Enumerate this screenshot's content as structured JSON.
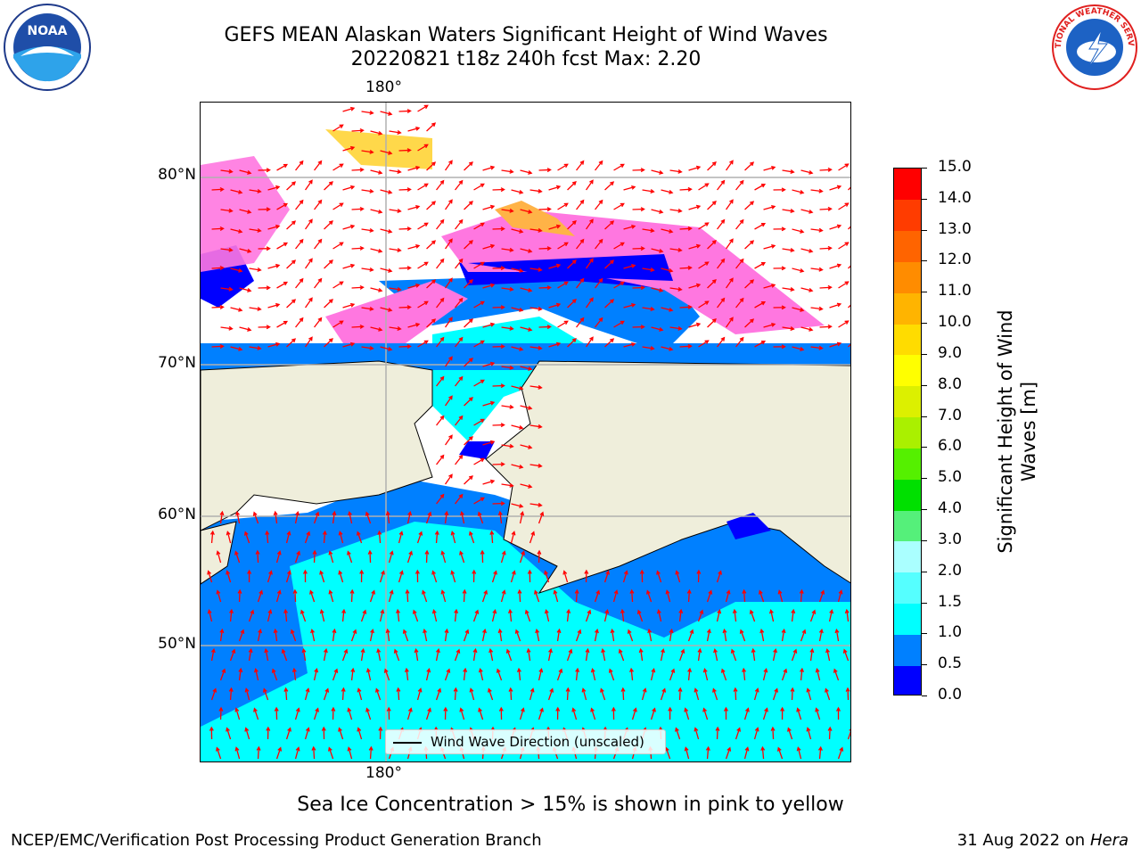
{
  "title": {
    "line1": "GEFS MEAN Alaskan Waters Significant Height of Wind Waves",
    "line2": "20220821 t18z 240h fcst   Max: 2.20"
  },
  "logos": {
    "left": {
      "name": "noaa-logo",
      "text": "NOAA"
    },
    "right": {
      "name": "nws-logo",
      "text": "NATIONAL WEATHER SERVICE"
    }
  },
  "map": {
    "lat_labels": [
      "80°N",
      "70°N",
      "60°N",
      "50°N"
    ],
    "lon_label_top": "180°",
    "lon_label_bottom": "180°",
    "legend": {
      "label": "Wind Wave Direction (unscaled)"
    },
    "colors": {
      "land": "#efeedb",
      "ice_pink": "#ff77e0",
      "ice_orange": "#ffb347",
      "ice_yellow": "#ffd84a",
      "wave_blue": "#0000ff",
      "wave_mid": "#0080ff",
      "wave_cyan": "#00ffff",
      "wave_light": "#66ffff",
      "arrow": "#ff0000",
      "grid": "#b0b0b0"
    }
  },
  "colorbar": {
    "label": "Significant Height of Wind Waves [m]",
    "ticks": [
      "0.0",
      "0.5",
      "1.0",
      "1.5",
      "2.0",
      "3.0",
      "4.0",
      "5.0",
      "6.0",
      "7.0",
      "8.0",
      "9.0",
      "10.0",
      "11.0",
      "12.0",
      "13.0",
      "14.0",
      "15.0"
    ],
    "colors": [
      "#0000ff",
      "#0080ff",
      "#00ffff",
      "#55ffff",
      "#aaffff",
      "#55f07a",
      "#00e000",
      "#55f000",
      "#aaf000",
      "#dcf000",
      "#ffff00",
      "#ffdc00",
      "#ffb400",
      "#ff8c00",
      "#ff6400",
      "#ff3c00",
      "#ff0000"
    ]
  },
  "bottom_note": "Sea Ice Concentration > 15% is shown in pink to yellow",
  "footer": {
    "left": "NCEP/EMC/Verification Post Processing Product Generation Branch",
    "right_date": "31 Aug 2022 on",
    "right_host": "Hera"
  }
}
